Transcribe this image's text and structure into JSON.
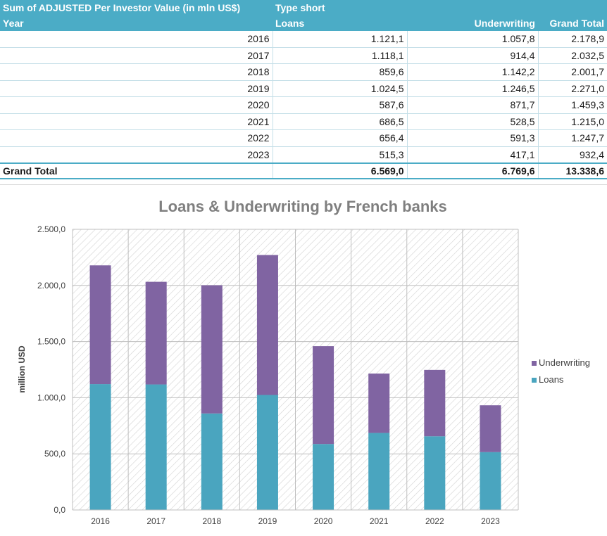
{
  "table": {
    "header_row1": [
      "Sum of ADJUSTED Per Investor Value (in mln US$)",
      "Type short",
      "",
      ""
    ],
    "header_row2": [
      "Year",
      "Loans",
      "Underwriting",
      "Grand Total"
    ],
    "rows": [
      [
        "2016",
        "1.121,1",
        "1.057,8",
        "2.178,9"
      ],
      [
        "2017",
        "1.118,1",
        "914,4",
        "2.032,5"
      ],
      [
        "2018",
        "859,6",
        "1.142,2",
        "2.001,7"
      ],
      [
        "2019",
        "1.024,5",
        "1.246,5",
        "2.271,0"
      ],
      [
        "2020",
        "587,6",
        "871,7",
        "1.459,3"
      ],
      [
        "2021",
        "686,5",
        "528,5",
        "1.215,0"
      ],
      [
        "2022",
        "656,4",
        "591,3",
        "1.247,7"
      ],
      [
        "2023",
        "515,3",
        "417,1",
        "932,4"
      ]
    ],
    "grand_total": [
      "Grand Total",
      "6.569,0",
      "6.769,6",
      "13.338,6"
    ]
  },
  "chart_data": {
    "type": "bar",
    "stacked": true,
    "title": "Loans & Underwriting by French banks",
    "xlabel": "",
    "ylabel": "million USD",
    "categories": [
      "2016",
      "2017",
      "2018",
      "2019",
      "2020",
      "2021",
      "2022",
      "2023"
    ],
    "series": [
      {
        "name": "Loans",
        "color": "#4aa5bf",
        "values": [
          1121.1,
          1118.1,
          859.6,
          1024.5,
          587.6,
          686.5,
          656.4,
          515.3
        ]
      },
      {
        "name": "Underwriting",
        "color": "#8064a2",
        "values": [
          1057.8,
          914.4,
          1142.2,
          1246.5,
          871.7,
          528.5,
          591.3,
          417.1
        ]
      }
    ],
    "ylim": [
      0,
      2500
    ],
    "yticks": [
      0,
      500,
      1000,
      1500,
      2000,
      2500
    ],
    "ytick_labels": [
      "0,0",
      "500,0",
      "1.000,0",
      "1.500,0",
      "2.000,0",
      "2.500,0"
    ],
    "grid": true,
    "legend_position": "right",
    "legend_order": [
      "Underwriting",
      "Loans"
    ]
  }
}
